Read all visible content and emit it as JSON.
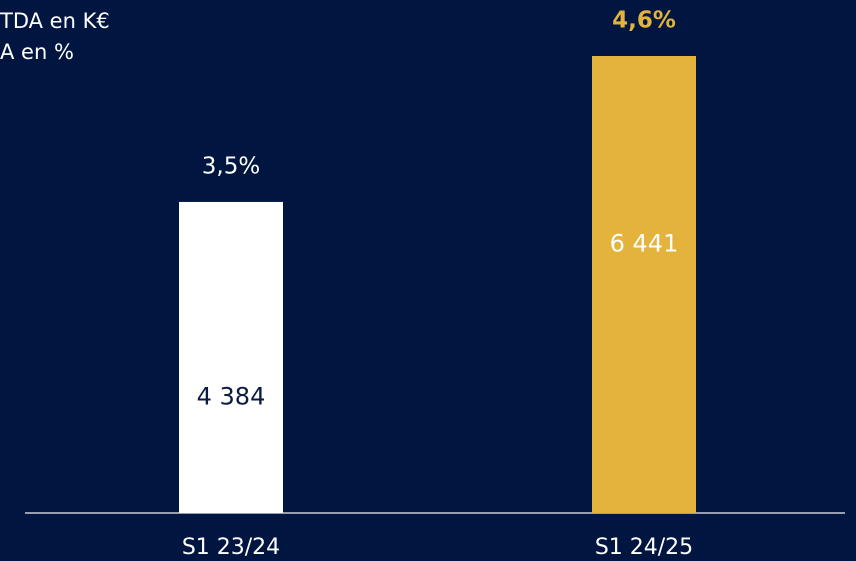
{
  "chart_data": {
    "type": "bar",
    "legend": [
      "TDA en K€",
      "A en %"
    ],
    "categories": [
      "S1 23/24",
      "S1 24/25"
    ],
    "values": [
      4384,
      6441
    ],
    "value_labels": [
      "4 384",
      "6 441"
    ],
    "colors": [
      "#ffffff",
      "#e3b33c"
    ],
    "margins": {
      "values": [
        3.5,
        4.6
      ],
      "value_labels": [
        "3,5%",
        "4,6%"
      ]
    }
  }
}
